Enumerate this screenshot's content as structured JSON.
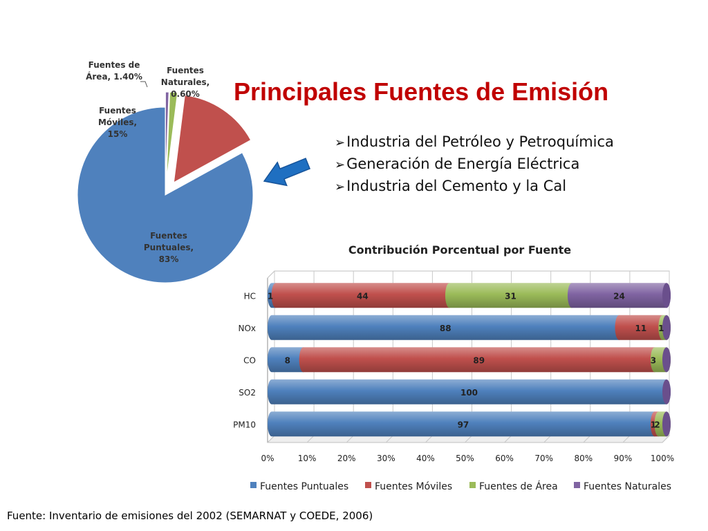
{
  "slide": {
    "title": "Principales Fuentes de Emisión",
    "bullets": [
      "Industria del Petróleo y Petroquímica",
      "Generación de Energía Eléctrica",
      "Industria del Cemento y la Cal"
    ],
    "source": "Fuente: Inventario de emisiones del 2002 (SEMARNAT y COEDE, 2006)",
    "arrow_icon": "arrow-left-icon"
  },
  "chart_data": [
    {
      "type": "pie",
      "title": "",
      "slices": [
        {
          "label_lines": [
            "Fuentes",
            "Puntuales,",
            "83%"
          ],
          "value": 83,
          "color": "#4f81bd"
        },
        {
          "label_lines": [
            "Fuentes",
            "Móviles,",
            "15%"
          ],
          "value": 15,
          "color": "#c0504d"
        },
        {
          "label_lines": [
            "Fuentes de",
            "Área, 1.40%"
          ],
          "value": 1.4,
          "color": "#9bbb59"
        },
        {
          "label_lines": [
            "Fuentes",
            "Naturales,",
            "0.60%"
          ],
          "value": 0.6,
          "color": "#8064a2"
        }
      ]
    },
    {
      "type": "bar",
      "orientation": "horizontal",
      "stacked": "percent",
      "title": "Contribución Porcentual por Fuente",
      "categories": [
        "HC",
        "NOx",
        "CO",
        "SO2",
        "PM10"
      ],
      "series": [
        {
          "name": "Fuentes Puntuales",
          "color": "#4f81bd",
          "values": [
            1,
            88,
            8,
            100,
            97
          ],
          "labels": [
            "1",
            "88",
            "8",
            "100",
            "97"
          ]
        },
        {
          "name": "Fuentes Móviles",
          "color": "#c0504d",
          "values": [
            44,
            11,
            89,
            0,
            1
          ],
          "labels": [
            "44",
            "11",
            "89",
            "",
            "1"
          ]
        },
        {
          "name": "Fuentes de Área",
          "color": "#9bbb59",
          "values": [
            31,
            1,
            3,
            0,
            2
          ],
          "labels": [
            "31",
            "1",
            "3",
            "",
            "2"
          ]
        },
        {
          "name": "Fuentes Naturales",
          "color": "#8064a2",
          "values": [
            24,
            0,
            0,
            0,
            0
          ],
          "labels": [
            "24",
            "",
            "",
            "",
            ""
          ]
        }
      ],
      "xlim": [
        0,
        100
      ],
      "xticks": [
        "0%",
        "10%",
        "20%",
        "30%",
        "40%",
        "50%",
        "60%",
        "70%",
        "80%",
        "90%",
        "100%"
      ],
      "grid": true,
      "legend": "bottom"
    }
  ]
}
